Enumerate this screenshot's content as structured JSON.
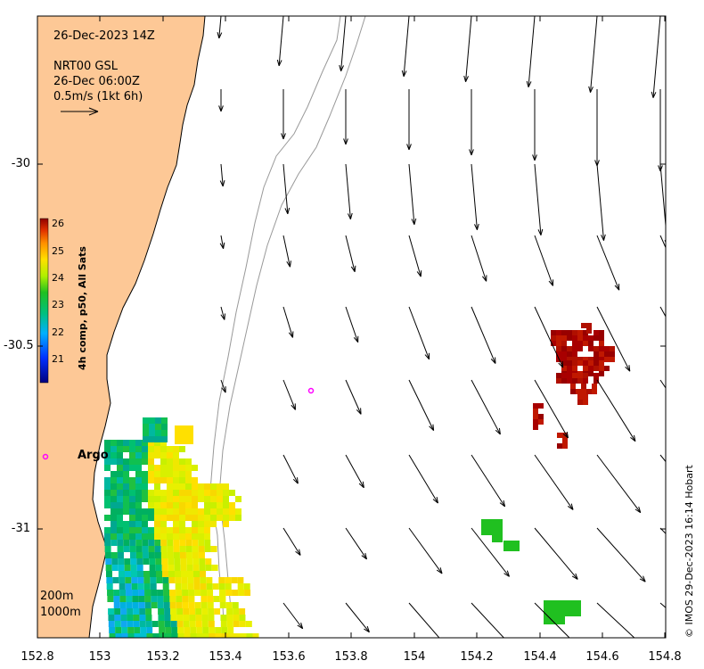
{
  "map": {
    "date_title": "26-Dec-2023 14Z",
    "product": "NRT00 GSL",
    "product_time": "26-Dec 06:00Z",
    "scale_label": "0.5m/s (1kt 6h)",
    "argo_label": "Argo",
    "isobath_200": "200m",
    "isobath_1000": "1000m",
    "credit": "© IMOS 29-Dec-2023 16:14 Hobart",
    "colorbar_title": "4h comp, p50, All Sats",
    "colorbar_ticks": [
      "26",
      "25",
      "24",
      "23",
      "22",
      "21"
    ],
    "x_ticks": [
      "152.8",
      "153",
      "153.2",
      "153.4",
      "153.6",
      "153.8",
      "154",
      "154.2",
      "154.4",
      "154.6",
      "154.8"
    ],
    "y_ticks": [
      "-30",
      "-30.5",
      "-31"
    ],
    "colors": {
      "land": "#fdc896",
      "coast": "#000000",
      "isobath": "#999999",
      "argo": "#ff00ff"
    }
  }
}
